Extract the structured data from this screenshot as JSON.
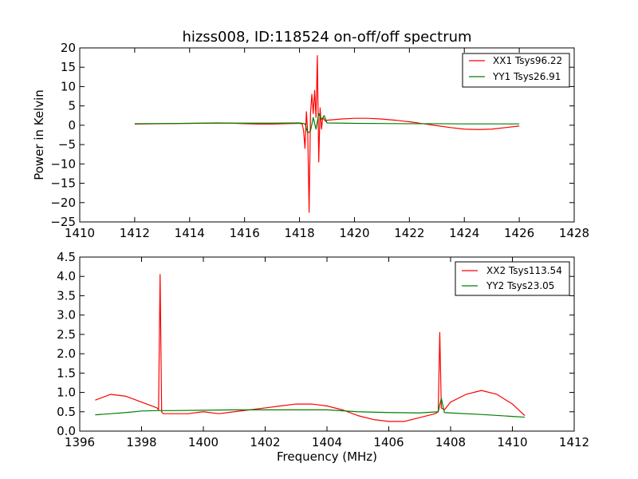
{
  "chart_data": [
    {
      "type": "line",
      "title": "hizss008, ID:118524 on-off/off spectrum",
      "xlabel": "",
      "ylabel": "Power in Kelvin",
      "xlim": [
        1410,
        1428
      ],
      "ylim": [
        -25,
        20
      ],
      "xticks": [
        1410,
        1412,
        1414,
        1416,
        1418,
        1420,
        1422,
        1424,
        1426,
        1428
      ],
      "yticks": [
        -25,
        -20,
        -15,
        -10,
        -5,
        0,
        5,
        10,
        15,
        20
      ],
      "legend_position": "top-right",
      "series": [
        {
          "name": "XX1 Tsys96.22",
          "color": "#ff0000",
          "x": [
            1412.0,
            1413.0,
            1414.0,
            1415.0,
            1415.5,
            1416.0,
            1416.5,
            1417.0,
            1417.5,
            1418.0,
            1418.1,
            1418.15,
            1418.2,
            1418.25,
            1418.3,
            1418.35,
            1418.4,
            1418.45,
            1418.5,
            1418.55,
            1418.6,
            1418.65,
            1418.7,
            1418.75,
            1418.8,
            1418.85,
            1418.9,
            1418.95,
            1419.0,
            1419.5,
            1420.0,
            1420.5,
            1421.0,
            1421.5,
            1422.0,
            1422.5,
            1423.0,
            1423.5,
            1424.0,
            1424.5,
            1425.0,
            1425.5,
            1426.0
          ],
          "y": [
            0.3,
            0.4,
            0.5,
            0.6,
            0.55,
            0.4,
            0.3,
            0.3,
            0.4,
            0.5,
            0.3,
            -1.5,
            -6.0,
            3.5,
            -2.0,
            -22.5,
            3.0,
            8.0,
            3.0,
            9.0,
            2.0,
            18.0,
            -9.5,
            4.5,
            -1.0,
            2.0,
            1.5,
            1.0,
            1.3,
            1.6,
            1.8,
            1.8,
            1.6,
            1.3,
            0.9,
            0.4,
            -0.1,
            -0.6,
            -1.0,
            -1.1,
            -1.0,
            -0.6,
            -0.2
          ]
        },
        {
          "name": "YY1 Tsys26.91",
          "color": "#008000",
          "x": [
            1412.0,
            1413.0,
            1414.0,
            1415.0,
            1416.0,
            1417.0,
            1418.0,
            1418.2,
            1418.3,
            1418.4,
            1418.5,
            1418.6,
            1418.7,
            1418.8,
            1418.9,
            1419.0,
            1420.0,
            1421.0,
            1422.0,
            1423.0,
            1424.0,
            1425.0,
            1426.0
          ],
          "y": [
            0.4,
            0.45,
            0.5,
            0.55,
            0.55,
            0.55,
            0.6,
            0.4,
            -2.0,
            -1.5,
            2.0,
            -1.0,
            3.0,
            1.5,
            2.5,
            0.6,
            0.5,
            0.45,
            0.4,
            0.4,
            0.35,
            0.35,
            0.35
          ]
        }
      ]
    },
    {
      "type": "line",
      "title": "",
      "xlabel": "Frequency (MHz)",
      "ylabel": "",
      "xlim": [
        1396,
        1412
      ],
      "ylim": [
        0.0,
        4.5
      ],
      "xticks": [
        1396,
        1398,
        1400,
        1402,
        1404,
        1406,
        1408,
        1410,
        1412
      ],
      "yticks": [
        0.0,
        0.5,
        1.0,
        1.5,
        2.0,
        2.5,
        3.0,
        3.5,
        4.0,
        4.5
      ],
      "legend_position": "top-right",
      "series": [
        {
          "name": "XX2 Tsys113.54",
          "color": "#ff0000",
          "x": [
            1396.5,
            1397.0,
            1397.5,
            1398.0,
            1398.5,
            1398.55,
            1398.6,
            1398.65,
            1398.7,
            1399.0,
            1399.5,
            1400.0,
            1400.5,
            1401.0,
            1401.5,
            1402.0,
            1402.5,
            1403.0,
            1403.5,
            1404.0,
            1404.5,
            1405.0,
            1405.5,
            1406.0,
            1406.5,
            1407.0,
            1407.5,
            1407.6,
            1407.65,
            1407.7,
            1407.8,
            1408.0,
            1408.5,
            1409.0,
            1409.5,
            1410.0,
            1410.4
          ],
          "y": [
            0.8,
            0.95,
            0.9,
            0.75,
            0.6,
            0.55,
            4.05,
            0.5,
            0.45,
            0.45,
            0.45,
            0.5,
            0.45,
            0.5,
            0.55,
            0.6,
            0.65,
            0.7,
            0.7,
            0.65,
            0.55,
            0.4,
            0.3,
            0.25,
            0.25,
            0.35,
            0.45,
            0.5,
            2.55,
            0.6,
            0.55,
            0.75,
            0.95,
            1.05,
            0.95,
            0.7,
            0.4
          ]
        },
        {
          "name": "YY2 Tsys23.05",
          "color": "#008000",
          "x": [
            1396.5,
            1397.0,
            1397.5,
            1398.0,
            1398.5,
            1399.0,
            1400.0,
            1401.0,
            1402.0,
            1403.0,
            1404.0,
            1405.0,
            1406.0,
            1407.0,
            1407.6,
            1407.7,
            1407.8,
            1408.0,
            1409.0,
            1410.0,
            1410.4
          ],
          "y": [
            0.42,
            0.45,
            0.48,
            0.52,
            0.53,
            0.53,
            0.54,
            0.55,
            0.55,
            0.55,
            0.55,
            0.5,
            0.48,
            0.47,
            0.5,
            0.85,
            0.48,
            0.47,
            0.43,
            0.38,
            0.36
          ]
        }
      ]
    }
  ]
}
